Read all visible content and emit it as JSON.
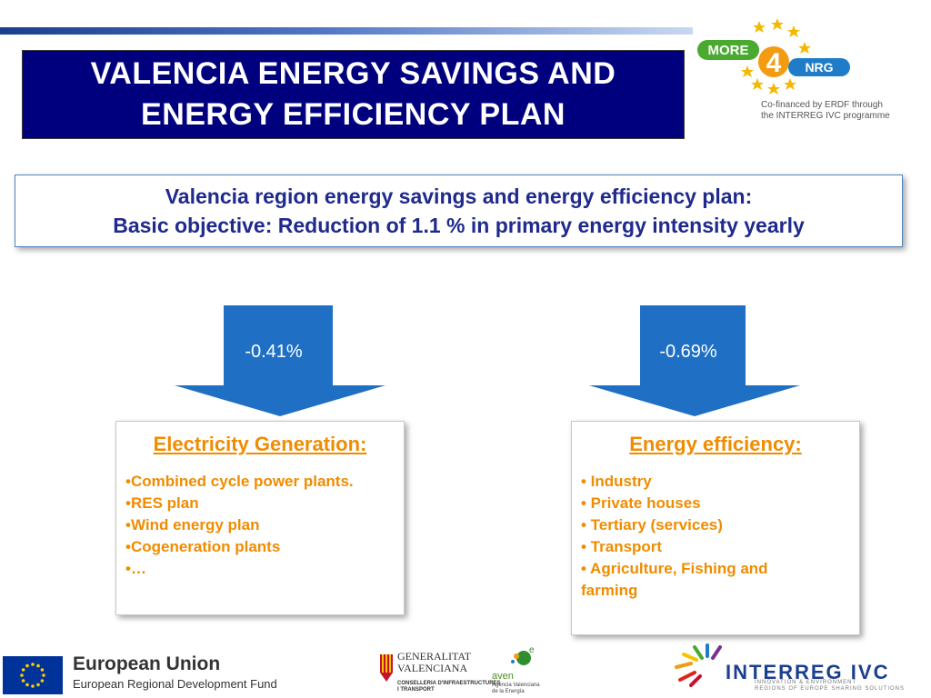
{
  "header": {
    "title": "VALENCIA ENERGY SAVINGS AND\nENERGY EFFICIENCY  PLAN"
  },
  "logo": {
    "more_label": "MORE",
    "number": "4",
    "nrg_label": "NRG",
    "cofinanced": "Co-financed by ERDF through\nthe INTERREG IVC programme"
  },
  "objective": {
    "line1": "Valencia region energy savings and energy efficiency plan:",
    "line2": "Basic objective: Reduction of 1.1 % in primary energy intensity yearly"
  },
  "arrows": [
    {
      "label": "-0.41%"
    },
    {
      "label": "-0.69%"
    }
  ],
  "cards": [
    {
      "title": "Electricity Generation:",
      "items": [
        "•Combined cycle power plants.",
        "•RES plan",
        "•Wind energy plan",
        "•Cogeneration plants",
        "•…"
      ]
    },
    {
      "title": "Energy efficiency:",
      "items": [
        "• Industry",
        "• Private houses",
        "• Tertiary  (services)",
        "• Transport",
        "• Agriculture, Fishing and farming"
      ]
    }
  ],
  "footer": {
    "eu_title": "European Union",
    "eu_sub": "European Regional Development Fund",
    "generalitat": "GENERALITAT\nVALENCIANA",
    "generalitat_sub": "CONSELLERIA D'INFRAESTRUCTURES\nI TRANSPORT",
    "aven": "aven",
    "aven_e": "e",
    "aven_sub": "Agencia Valenciana\nde la Energía",
    "interreg": "INTERREG IVC",
    "interreg_sub": "INNOVATION & ENVIRONMENT\nREGIONS OF EUROPE SHARING SOLUTIONS"
  },
  "colors": {
    "title_bg": "#00007f",
    "objective_text": "#1f2a8c",
    "arrow": "#1f6fc4",
    "card_text": "#f08c00"
  }
}
